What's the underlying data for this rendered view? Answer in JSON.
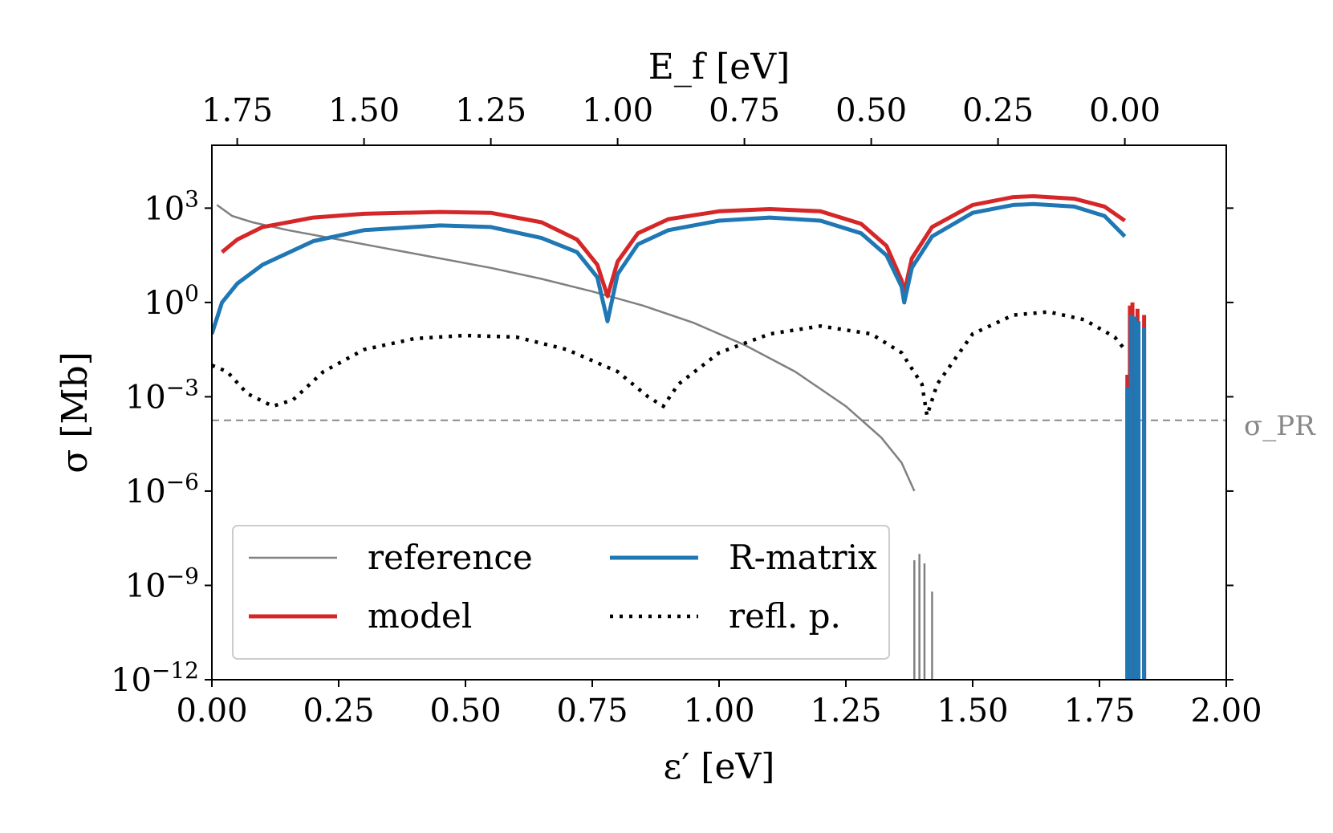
{
  "chart_data": {
    "type": "line",
    "y_scale": "log",
    "xlabel": "ε′ [eV]",
    "ylabel": "σ [Mb]",
    "top_xlabel": "E_f [eV]",
    "xlim": [
      0.0,
      2.0
    ],
    "ylim_log10": [
      -12,
      5
    ],
    "x_ticks": [
      0.0,
      0.25,
      0.5,
      0.75,
      1.0,
      1.25,
      1.5,
      1.75,
      2.0
    ],
    "x_tick_labels": [
      "0.00",
      "0.25",
      "0.50",
      "0.75",
      "1.00",
      "1.25",
      "1.50",
      "1.75",
      "2.00"
    ],
    "y_ticks_log10": [
      -12,
      -9,
      -6,
      -3,
      0,
      3
    ],
    "y_tick_labels": [
      {
        "base": "10",
        "exp": "−12"
      },
      {
        "base": "10",
        "exp": "−9"
      },
      {
        "base": "10",
        "exp": "−6"
      },
      {
        "base": "10",
        "exp": "−3"
      },
      {
        "base": "10",
        "exp": "0"
      },
      {
        "base": "10",
        "exp": "3"
      }
    ],
    "top_axis": {
      "offset_eV": 1.8,
      "ticks": [
        1.75,
        1.5,
        1.25,
        1.0,
        0.75,
        0.5,
        0.25,
        0.0
      ],
      "tick_labels": [
        "1.75",
        "1.50",
        "1.25",
        "1.00",
        "0.75",
        "0.50",
        "0.25",
        "0.00"
      ]
    },
    "hline": {
      "label": "σ_PR",
      "log10_y": -3.75,
      "color": "#888888"
    },
    "series": [
      {
        "name": "reference",
        "color": "#808080",
        "style": "thin",
        "points": [
          [
            0.01,
            3.1
          ],
          [
            0.04,
            2.75
          ],
          [
            0.08,
            2.55
          ],
          [
            0.15,
            2.3
          ],
          [
            0.25,
            2.0
          ],
          [
            0.35,
            1.7
          ],
          [
            0.45,
            1.4
          ],
          [
            0.55,
            1.1
          ],
          [
            0.65,
            0.75
          ],
          [
            0.75,
            0.35
          ],
          [
            0.85,
            -0.1
          ],
          [
            0.95,
            -0.65
          ],
          [
            1.05,
            -1.35
          ],
          [
            1.15,
            -2.2
          ],
          [
            1.25,
            -3.3
          ],
          [
            1.32,
            -4.3
          ],
          [
            1.36,
            -5.1
          ],
          [
            1.385,
            -6.0
          ]
        ]
      },
      {
        "name": "model",
        "color": "#d62728",
        "style": "thick",
        "points": [
          [
            0.02,
            1.6
          ],
          [
            0.05,
            2.0
          ],
          [
            0.1,
            2.4
          ],
          [
            0.2,
            2.7
          ],
          [
            0.3,
            2.82
          ],
          [
            0.45,
            2.88
          ],
          [
            0.55,
            2.85
          ],
          [
            0.65,
            2.55
          ],
          [
            0.72,
            2.0
          ],
          [
            0.76,
            1.2
          ],
          [
            0.78,
            0.2
          ],
          [
            0.8,
            1.3
          ],
          [
            0.84,
            2.2
          ],
          [
            0.9,
            2.65
          ],
          [
            1.0,
            2.9
          ],
          [
            1.1,
            2.97
          ],
          [
            1.2,
            2.9
          ],
          [
            1.28,
            2.5
          ],
          [
            1.33,
            1.8
          ],
          [
            1.36,
            0.7
          ],
          [
            1.365,
            0.3
          ],
          [
            1.38,
            1.4
          ],
          [
            1.42,
            2.4
          ],
          [
            1.5,
            3.1
          ],
          [
            1.58,
            3.35
          ],
          [
            1.62,
            3.38
          ],
          [
            1.7,
            3.3
          ],
          [
            1.76,
            3.05
          ],
          [
            1.8,
            2.6
          ]
        ]
      },
      {
        "name": "R-matrix",
        "color": "#1f77b4",
        "style": "thick",
        "points": [
          [
            0.0,
            -1.0
          ],
          [
            0.02,
            0.0
          ],
          [
            0.05,
            0.6
          ],
          [
            0.1,
            1.2
          ],
          [
            0.2,
            1.95
          ],
          [
            0.3,
            2.3
          ],
          [
            0.45,
            2.45
          ],
          [
            0.55,
            2.4
          ],
          [
            0.65,
            2.05
          ],
          [
            0.72,
            1.6
          ],
          [
            0.76,
            0.8
          ],
          [
            0.78,
            -0.6
          ],
          [
            0.8,
            0.9
          ],
          [
            0.84,
            1.85
          ],
          [
            0.9,
            2.3
          ],
          [
            1.0,
            2.6
          ],
          [
            1.1,
            2.7
          ],
          [
            1.2,
            2.6
          ],
          [
            1.28,
            2.2
          ],
          [
            1.33,
            1.5
          ],
          [
            1.36,
            0.5
          ],
          [
            1.365,
            0.0
          ],
          [
            1.38,
            1.1
          ],
          [
            1.42,
            2.1
          ],
          [
            1.5,
            2.85
          ],
          [
            1.58,
            3.1
          ],
          [
            1.62,
            3.13
          ],
          [
            1.7,
            3.05
          ],
          [
            1.76,
            2.75
          ],
          [
            1.8,
            2.1
          ]
        ]
      },
      {
        "name": "refl. p.",
        "color": "#000000",
        "style": "dotted",
        "points": [
          [
            0.0,
            -2.0
          ],
          [
            0.03,
            -2.2
          ],
          [
            0.07,
            -2.9
          ],
          [
            0.12,
            -3.3
          ],
          [
            0.16,
            -3.1
          ],
          [
            0.22,
            -2.2
          ],
          [
            0.3,
            -1.5
          ],
          [
            0.4,
            -1.15
          ],
          [
            0.5,
            -1.05
          ],
          [
            0.6,
            -1.1
          ],
          [
            0.7,
            -1.5
          ],
          [
            0.8,
            -2.2
          ],
          [
            0.86,
            -3.0
          ],
          [
            0.89,
            -3.3
          ],
          [
            0.92,
            -2.6
          ],
          [
            1.0,
            -1.6
          ],
          [
            1.1,
            -1.0
          ],
          [
            1.2,
            -0.75
          ],
          [
            1.3,
            -1.0
          ],
          [
            1.36,
            -1.6
          ],
          [
            1.4,
            -2.6
          ],
          [
            1.41,
            -3.6
          ],
          [
            1.43,
            -2.6
          ],
          [
            1.5,
            -1.0
          ],
          [
            1.58,
            -0.4
          ],
          [
            1.65,
            -0.3
          ],
          [
            1.72,
            -0.55
          ],
          [
            1.78,
            -1.1
          ],
          [
            1.8,
            -1.5
          ]
        ]
      }
    ],
    "spikes": [
      {
        "series": "reference",
        "color": "#808080",
        "x": 1.385,
        "top": -8.2
      },
      {
        "series": "reference",
        "color": "#808080",
        "x": 1.395,
        "top": -8.0
      },
      {
        "series": "reference",
        "color": "#808080",
        "x": 1.405,
        "top": -8.3
      },
      {
        "series": "reference",
        "color": "#808080",
        "x": 1.42,
        "top": -9.2
      },
      {
        "series": "model",
        "color": "#d62728",
        "x": 1.805,
        "top": -2.3
      },
      {
        "series": "model",
        "color": "#d62728",
        "x": 1.81,
        "top": -0.1
      },
      {
        "series": "model",
        "color": "#d62728",
        "x": 1.815,
        "top": 0.0
      },
      {
        "series": "model",
        "color": "#d62728",
        "x": 1.825,
        "top": -0.2
      },
      {
        "series": "model",
        "color": "#d62728",
        "x": 1.838,
        "top": -0.4
      },
      {
        "series": "R-matrix",
        "color": "#1f77b4",
        "x": 1.805,
        "top": -2.7
      },
      {
        "series": "R-matrix",
        "color": "#1f77b4",
        "x": 1.812,
        "top": -0.4
      },
      {
        "series": "R-matrix",
        "color": "#1f77b4",
        "x": 1.82,
        "top": -0.45
      },
      {
        "series": "R-matrix",
        "color": "#1f77b4",
        "x": 1.827,
        "top": -0.6
      },
      {
        "series": "R-matrix",
        "color": "#1f77b4",
        "x": 1.838,
        "top": -0.8
      }
    ],
    "legend": {
      "placement": "lower-left",
      "entries": [
        {
          "label": "reference",
          "series": "reference"
        },
        {
          "label": "R-matrix",
          "series": "R-matrix"
        },
        {
          "label": "model",
          "series": "model"
        },
        {
          "label": "refl. p.",
          "series": "refl. p."
        }
      ]
    }
  }
}
